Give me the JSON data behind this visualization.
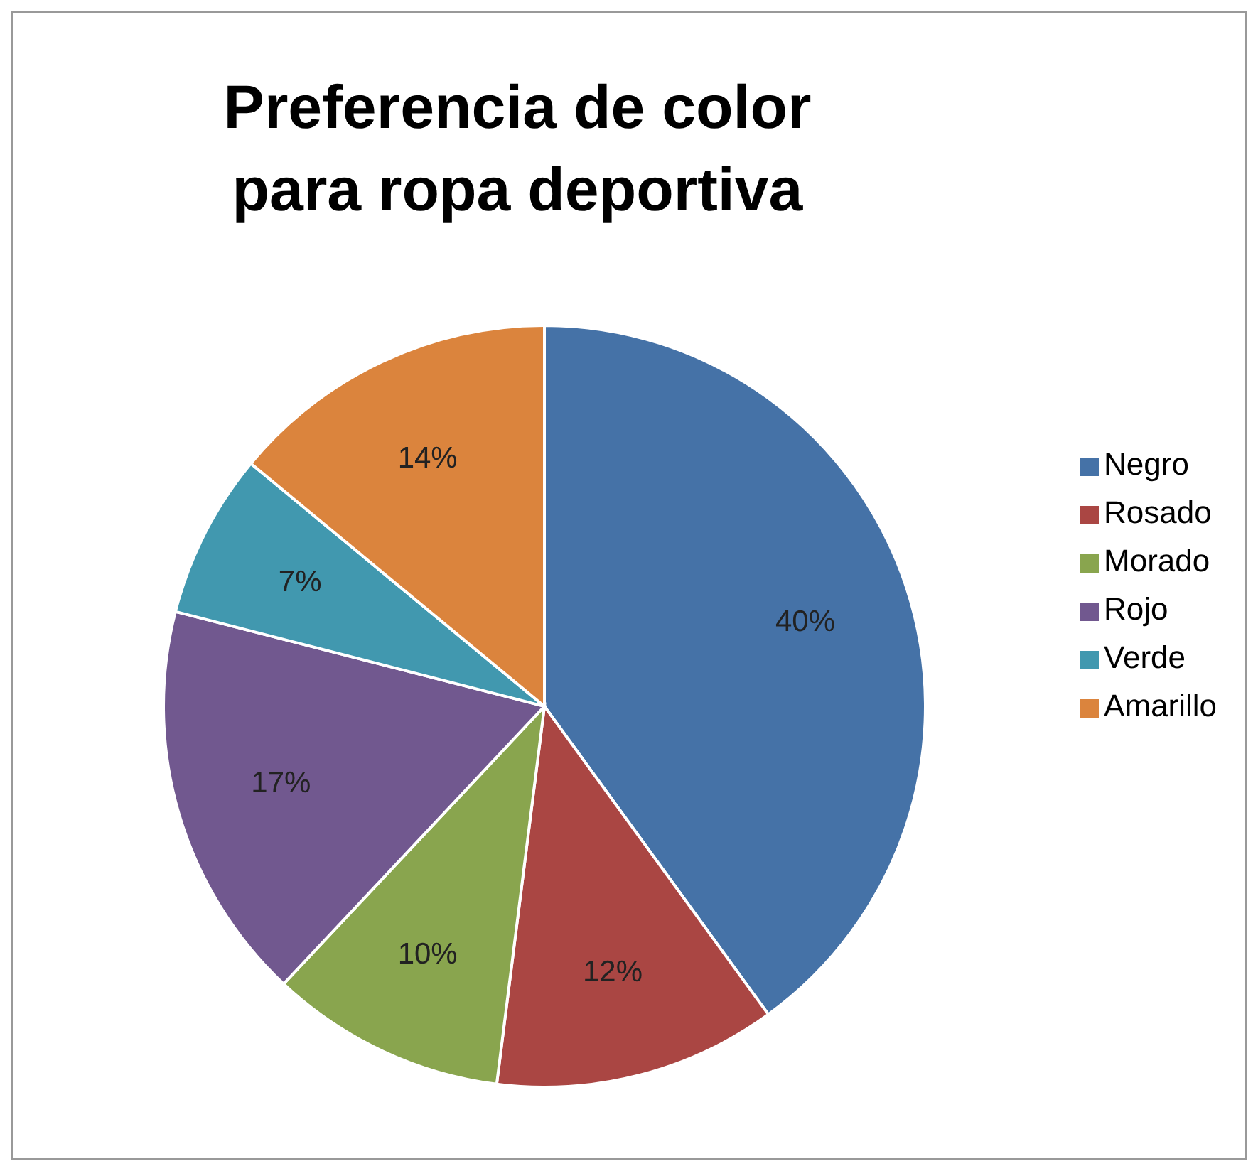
{
  "chart_data": {
    "type": "pie",
    "title": "Preferencia de color para ropa deportiva",
    "categories": [
      "Negro",
      "Rosado",
      "Morado",
      "Rojo",
      "Verde",
      "Amarillo"
    ],
    "values": [
      40,
      12,
      10,
      17,
      7,
      14
    ],
    "value_labels": [
      "40%",
      "12%",
      "10%",
      "17%",
      "7%",
      "14%"
    ],
    "colors": [
      "#4572a7",
      "#aa4643",
      "#89a54e",
      "#71588f",
      "#4198af",
      "#db843d"
    ],
    "legend": "right"
  }
}
